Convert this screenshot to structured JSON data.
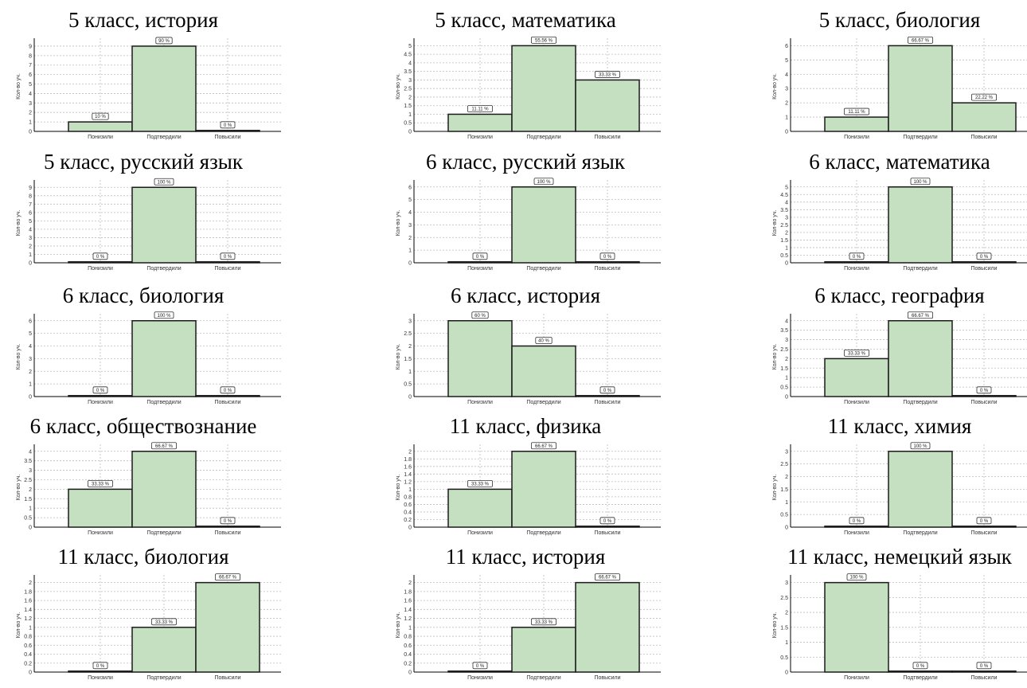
{
  "colors": {
    "bar_fill": "#c5e0c0",
    "bar_stroke": "#1a1a1a",
    "grid": "#bdbdbd"
  },
  "chart_data": [
    {
      "type": "bar",
      "title": "5 класс, история",
      "ylabel": "Кол-во уч.",
      "categories": [
        "Понизили",
        "Подтвердили",
        "Повысили"
      ],
      "values": [
        1,
        9,
        0
      ],
      "data_labels": [
        "10 %",
        "90 %",
        "0 %"
      ],
      "yticks": [
        "0",
        "1",
        "2",
        "3",
        "4",
        "5",
        "6",
        "7",
        "8",
        "9"
      ],
      "ylim": [
        0,
        9.5
      ],
      "grid": true
    },
    {
      "type": "bar",
      "title": "5 класс, математика",
      "ylabel": "Кол-во уч.",
      "categories": [
        "Понизили",
        "Подтвердили",
        "Повысили"
      ],
      "values": [
        1,
        5,
        3
      ],
      "data_labels": [
        "11.11 %",
        "55.56 %",
        "33.33 %"
      ],
      "yticks": [
        "0",
        "0.5",
        "1",
        "1.5",
        "2",
        "2.5",
        "3",
        "3.5",
        "4",
        "4.5",
        "5"
      ],
      "ylim": [
        0,
        5.25
      ],
      "grid": true
    },
    {
      "type": "bar",
      "title": "5 класс, биология",
      "ylabel": "Кол-во уч.",
      "categories": [
        "Понизили",
        "Подтвердили",
        "Повысили"
      ],
      "values": [
        1,
        6,
        2
      ],
      "data_labels": [
        "11.11 %",
        "66.67 %",
        "22.22 %"
      ],
      "yticks": [
        "0",
        "1",
        "2",
        "3",
        "4",
        "5",
        "6"
      ],
      "ylim": [
        0,
        6.3
      ],
      "grid": true
    },
    {
      "type": "bar",
      "title": "5 класс, русский язык",
      "ylabel": "Кол-во уч.",
      "categories": [
        "Понизили",
        "Подтвердили",
        "Повысили"
      ],
      "values": [
        0,
        9,
        0
      ],
      "data_labels": [
        "0 %",
        "100 %",
        "0 %"
      ],
      "yticks": [
        "0",
        "1",
        "2",
        "3",
        "4",
        "5",
        "6",
        "7",
        "8",
        "9"
      ],
      "ylim": [
        0,
        9.5
      ],
      "grid": true
    },
    {
      "type": "bar",
      "title": "6 класс, русский язык",
      "ylabel": "Кол-во уч.",
      "categories": [
        "Понизили",
        "Подтвердили",
        "Повысили"
      ],
      "values": [
        0,
        6,
        0
      ],
      "data_labels": [
        "0 %",
        "100 %",
        "0 %"
      ],
      "yticks": [
        "0",
        "1",
        "2",
        "3",
        "4",
        "5",
        "6"
      ],
      "ylim": [
        0,
        6.3
      ],
      "grid": true
    },
    {
      "type": "bar",
      "title": "6 класс, математика",
      "ylabel": "Кол-во уч.",
      "categories": [
        "Понизили",
        "Подтвердили",
        "Повысили"
      ],
      "values": [
        0,
        5,
        0
      ],
      "data_labels": [
        "0 %",
        "100 %",
        "0 %"
      ],
      "yticks": [
        "0",
        "0.5",
        "1",
        "1.5",
        "2",
        "2.5",
        "3",
        "3.5",
        "4",
        "4.5",
        "5"
      ],
      "ylim": [
        0,
        5.25
      ],
      "grid": true
    },
    {
      "type": "bar",
      "title": "6 класс, биология",
      "ylabel": "Кол-во уч.",
      "categories": [
        "Понизили",
        "Подтвердили",
        "Повысили"
      ],
      "values": [
        0,
        6,
        0
      ],
      "data_labels": [
        "0 %",
        "100 %",
        "0 %"
      ],
      "yticks": [
        "0",
        "1",
        "2",
        "3",
        "4",
        "5",
        "6"
      ],
      "ylim": [
        0,
        6.3
      ],
      "grid": true
    },
    {
      "type": "bar",
      "title": "6 класс, история",
      "ylabel": "Кол-во уч.",
      "categories": [
        "Понизили",
        "Подтвердили",
        "Повысили"
      ],
      "values": [
        3,
        2,
        0
      ],
      "data_labels": [
        "60 %",
        "40 %",
        "0 %"
      ],
      "yticks": [
        "0",
        "0.5",
        "1",
        "1.5",
        "2",
        "2.5",
        "3"
      ],
      "ylim": [
        0,
        3.15
      ],
      "grid": true
    },
    {
      "type": "bar",
      "title": "6 класс, география",
      "ylabel": "Кол-во уч.",
      "categories": [
        "Понизили",
        "Подтвердили",
        "Повысили"
      ],
      "values": [
        2,
        4,
        0
      ],
      "data_labels": [
        "33.33 %",
        "66.67 %",
        "0 %"
      ],
      "yticks": [
        "0",
        "0.5",
        "1",
        "1.5",
        "2",
        "2.5",
        "3",
        "3.5",
        "4"
      ],
      "ylim": [
        0,
        4.2
      ],
      "grid": true
    },
    {
      "type": "bar",
      "title": "6 класс, обществознание",
      "ylabel": "Кол-во уч.",
      "categories": [
        "Понизили",
        "Подтвердили",
        "Повысили"
      ],
      "values": [
        2,
        4,
        0
      ],
      "data_labels": [
        "33.33 %",
        "66.67 %",
        "0 %"
      ],
      "yticks": [
        "0",
        "0.5",
        "1",
        "1.5",
        "2",
        "2.5",
        "3",
        "3.5",
        "4"
      ],
      "ylim": [
        0,
        4.2
      ],
      "grid": true
    },
    {
      "type": "bar",
      "title": "11 класс, физика",
      "ylabel": "Кол-во уч.",
      "categories": [
        "Понизили",
        "Подтвердили",
        "Повысили"
      ],
      "values": [
        1,
        2,
        0
      ],
      "data_labels": [
        "33.33 %",
        "66.67 %",
        "0 %"
      ],
      "yticks": [
        "0",
        "0.2",
        "0.4",
        "0.6",
        "0.8",
        "1",
        "1.2",
        "1.4",
        "1.6",
        "1.8",
        "2"
      ],
      "ylim": [
        0,
        2.1
      ],
      "grid": true
    },
    {
      "type": "bar",
      "title": "11 класс, химия",
      "ylabel": "Кол-во уч.",
      "categories": [
        "Понизили",
        "Подтвердили",
        "Повысили"
      ],
      "values": [
        0,
        3,
        0
      ],
      "data_labels": [
        "0 %",
        "100 %",
        "0 %"
      ],
      "yticks": [
        "0",
        "0.5",
        "1",
        "1.5",
        "2",
        "2.5",
        "3"
      ],
      "ylim": [
        0,
        3.15
      ],
      "grid": true
    },
    {
      "type": "bar",
      "title": "11 класс, биология",
      "ylabel": "Кол-во уч.",
      "categories": [
        "Понизили",
        "Подтвердили",
        "Повысили"
      ],
      "values": [
        0,
        1,
        2
      ],
      "data_labels": [
        "0 %",
        "33.33 %",
        "66.67 %"
      ],
      "yticks": [
        "0",
        "0.2",
        "0.4",
        "0.6",
        "0.8",
        "1",
        "1.2",
        "1.4",
        "1.6",
        "1.8",
        "2"
      ],
      "ylim": [
        0,
        2.1
      ],
      "grid": true
    },
    {
      "type": "bar",
      "title": "11 класс, история",
      "ylabel": "Кол-во уч.",
      "categories": [
        "Понизили",
        "Подтвердили",
        "Повысили"
      ],
      "values": [
        0,
        1,
        2
      ],
      "data_labels": [
        "0 %",
        "33.33 %",
        "66.67 %"
      ],
      "yticks": [
        "0",
        "0.2",
        "0.4",
        "0.6",
        "0.8",
        "1",
        "1.2",
        "1.4",
        "1.6",
        "1.8",
        "2"
      ],
      "ylim": [
        0,
        2.1
      ],
      "grid": true
    },
    {
      "type": "bar",
      "title": "11 класс, немецкий язык",
      "ylabel": "Кол-во уч.",
      "categories": [
        "Понизили",
        "Подтвердили",
        "Повысили"
      ],
      "values": [
        3,
        0,
        0
      ],
      "data_labels": [
        "100 %",
        "0 %",
        "0 %"
      ],
      "yticks": [
        "0",
        "0.5",
        "1",
        "1.5",
        "2",
        "2.5",
        "3"
      ],
      "ylim": [
        0,
        3.15
      ],
      "grid": true
    }
  ]
}
